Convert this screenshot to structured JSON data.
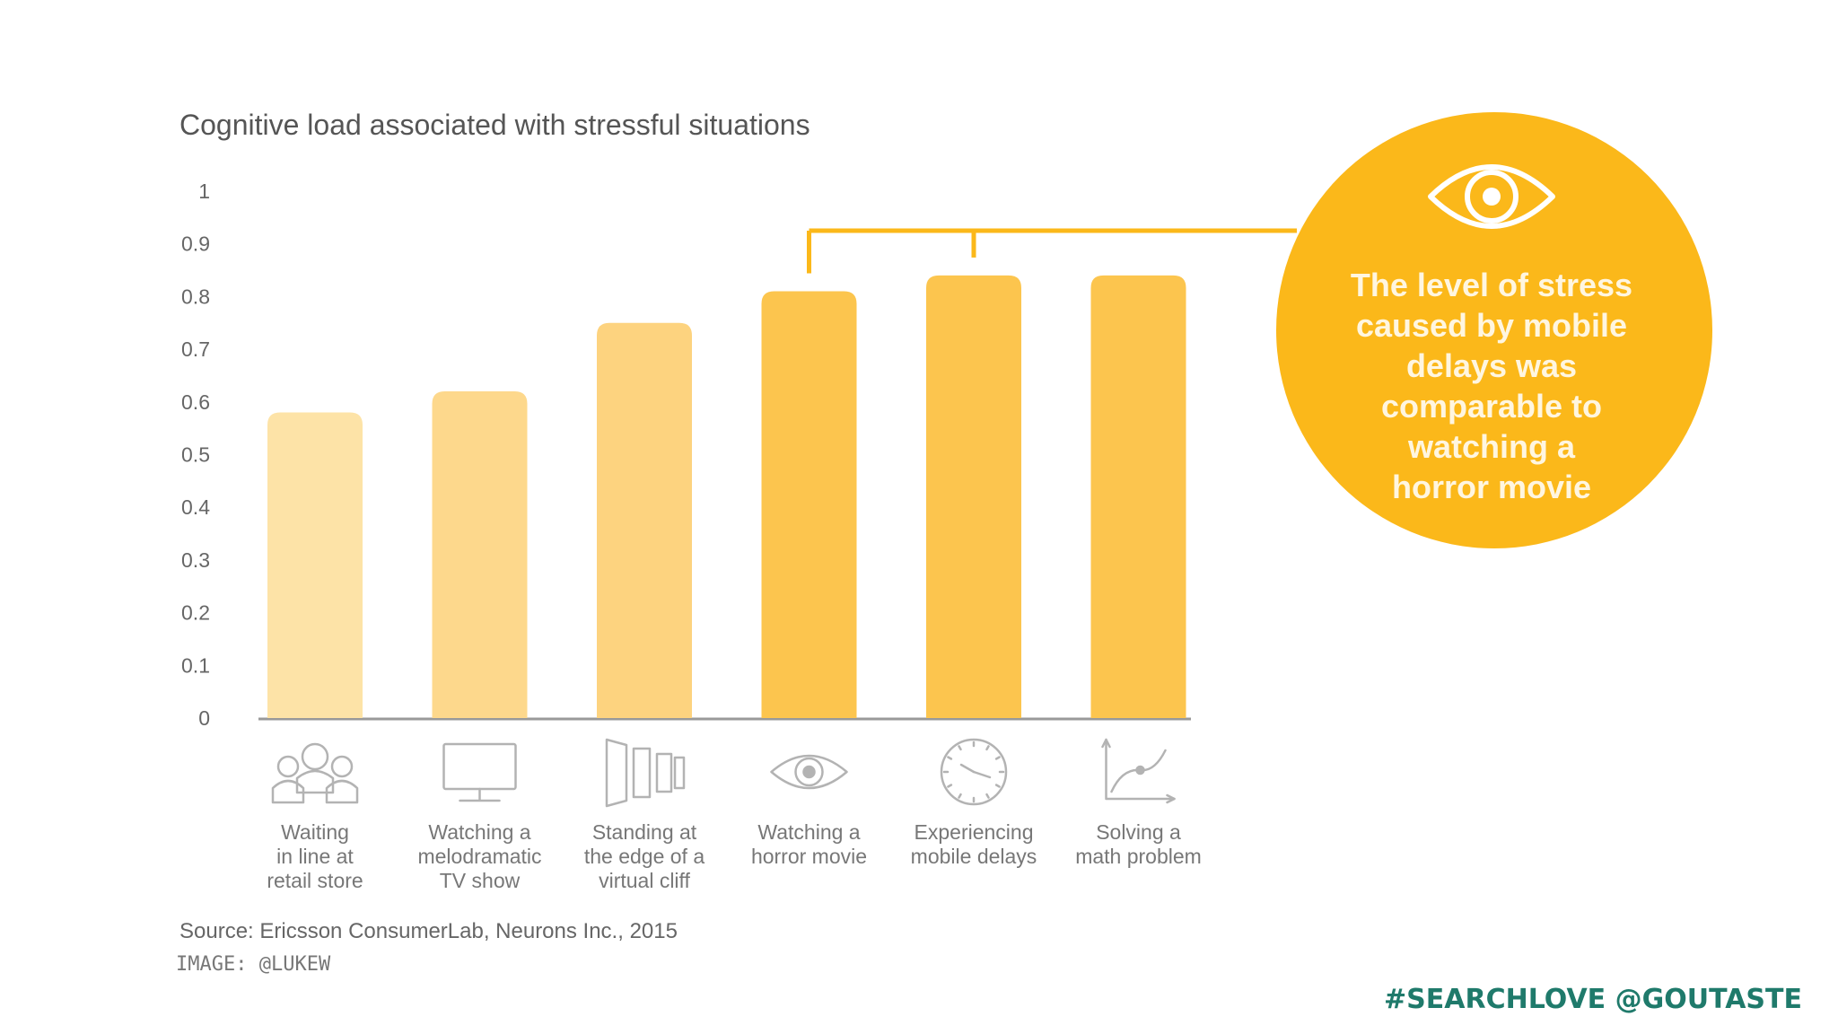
{
  "chart_data": {
    "type": "bar",
    "title": "Cognitive load associated with stressful situations",
    "categories": [
      [
        "Waiting",
        "in line at",
        "retail store"
      ],
      [
        "Watching a",
        "melodramatic",
        "TV show"
      ],
      [
        "Standing at",
        "the edge of a",
        "virtual cliff"
      ],
      [
        "Watching a",
        "horror movie"
      ],
      [
        "Experiencing",
        "mobile delays"
      ],
      [
        "Solving a",
        "math problem"
      ]
    ],
    "values": [
      0.58,
      0.62,
      0.75,
      0.81,
      0.84,
      0.84
    ],
    "ylim": [
      0,
      1
    ],
    "yticks": [
      "0",
      "0.1",
      "0.2",
      "0.3",
      "0.4",
      "0.5",
      "0.6",
      "0.7",
      "0.8",
      "0.9",
      "1"
    ],
    "grid": false,
    "bar_colors": [
      "#fde3a7",
      "#fdd88c",
      "#fdd37f",
      "#fcc54e",
      "#fcc54e",
      "#fcc54e"
    ],
    "icons": [
      "people-group-icon",
      "tv-monitor-icon",
      "cliff-panels-icon",
      "eye-icon",
      "clock-icon",
      "graph-curve-icon"
    ],
    "highlight": [
      3,
      4
    ],
    "accent_color": "#fbb81a",
    "callout": {
      "icon": "eye-icon",
      "lines": [
        "The level of stress",
        "caused by mobile",
        "delays was",
        "comparable to",
        "watching a",
        "horror movie"
      ]
    },
    "source": "Source: Ericsson ConsumerLab, Neurons Inc., 2015"
  },
  "credit": "IMAGE: @LUKEW",
  "hashtag": "#SEARCHLOVE @GOUTASTE"
}
